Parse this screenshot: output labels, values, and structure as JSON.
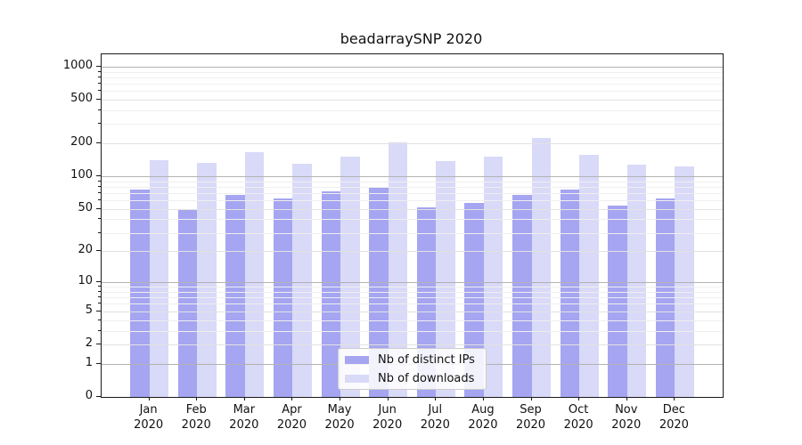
{
  "chart_data": {
    "type": "bar",
    "title": "beadarraySNP 2020",
    "year": "2020",
    "months": [
      "Jan",
      "Feb",
      "Mar",
      "Apr",
      "May",
      "Jun",
      "Jul",
      "Aug",
      "Sep",
      "Oct",
      "Nov",
      "Dec"
    ],
    "categories": [
      "Jan 2020",
      "Feb 2020",
      "Mar 2020",
      "Apr 2020",
      "May 2020",
      "Jun 2020",
      "Jul 2020",
      "Aug 2020",
      "Sep 2020",
      "Oct 2020",
      "Nov 2020",
      "Dec 2020"
    ],
    "series": [
      {
        "name": "Nb of distinct IPs",
        "color": "#a5a5f1",
        "values": [
          75,
          50,
          67,
          63,
          73,
          78,
          52,
          57,
          67,
          75,
          54,
          63
        ]
      },
      {
        "name": "Nb of downloads",
        "color": "#d9d9f8",
        "values": [
          140,
          133,
          167,
          130,
          151,
          206,
          139,
          152,
          224,
          156,
          129,
          123
        ]
      }
    ],
    "yscale": "log1p",
    "y_ticks": [
      0,
      1,
      2,
      5,
      10,
      20,
      50,
      100,
      200,
      500,
      1000
    ],
    "ylim": [
      0,
      1300
    ],
    "xlabel": "",
    "ylabel": "",
    "grid": true,
    "legend_position": "lower center"
  },
  "colors": {
    "bar_ips": "#a5a5f1",
    "bar_downloads": "#d9d9f8",
    "grid_major": "#b3b3b3",
    "grid_labeled": "#e2e2e2",
    "grid_minor": "#efefef",
    "spine": "#1a1a1a",
    "background": "#ffffff"
  }
}
